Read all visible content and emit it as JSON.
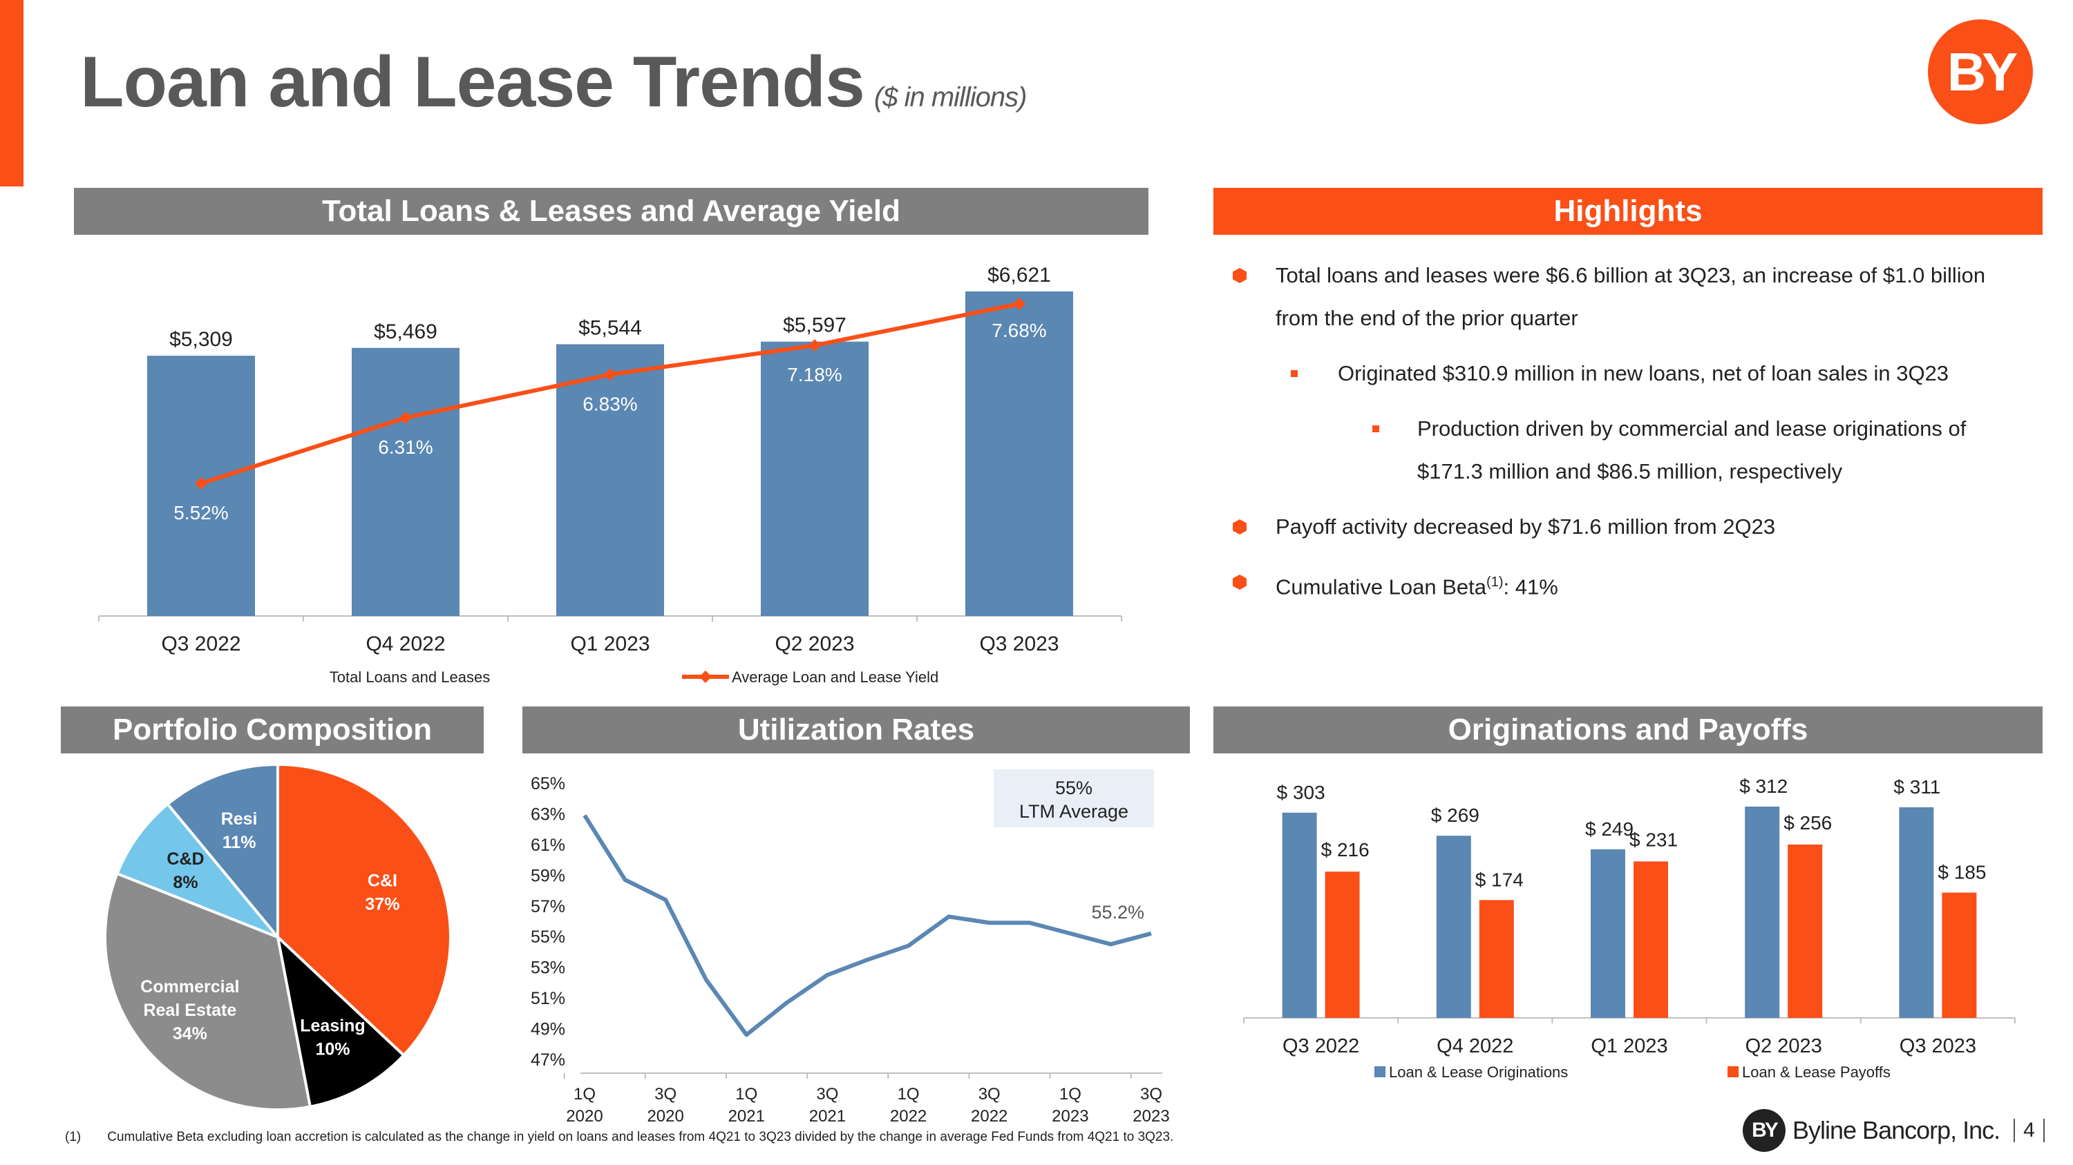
{
  "header": {
    "title": "Loan and Lease Trends",
    "subtitle": "($ in millions)",
    "logo_text": "BY"
  },
  "sections": {
    "total_loans": "Total Loans & Leases and Average Yield",
    "highlights": "Highlights",
    "portfolio": "Portfolio Composition",
    "utilization": "Utilization Rates",
    "originations": "Originations and Payoffs"
  },
  "highlights": [
    {
      "level": 1,
      "lines": [
        "Total loans and leases were $6.6 billion at 3Q23, an increase of $1.0 billion",
        "from the end of the prior quarter"
      ]
    },
    {
      "level": 2,
      "lines": [
        "Originated $310.9 million in new loans, net of loan sales in 3Q23"
      ]
    },
    {
      "level": 3,
      "lines": [
        "Production driven by commercial and lease originations of",
        "$171.3 million and $86.5 million, respectively"
      ]
    },
    {
      "level": 1,
      "lines": [
        "Payoff activity decreased by $71.6 million from 2Q23"
      ]
    },
    {
      "level": 1,
      "lines": [
        "Cumulative Loan Beta",
        ": 41%"
      ],
      "sup": "(1)"
    }
  ],
  "footnote": {
    "marker": "(1)",
    "text": "Cumulative Beta excluding loan accretion is calculated as the change in yield on loans and leases from 4Q21 to 3Q23 divided by the change in average Fed Funds from 4Q21 to 3Q23."
  },
  "footer": {
    "brand_mark": "BY",
    "brand_name": "Byline Bancorp, Inc.",
    "page": "4"
  },
  "colors": {
    "orange": "#FA4F17",
    "blue": "#5B87B3",
    "gray": "#7F7F7F",
    "black": "#000000",
    "light_blue": "#74C6EA",
    "mid_gray": "#8C8C8C"
  },
  "chart_data": [
    {
      "id": "loans_yield",
      "type": "bar",
      "categories": [
        "Q3 2022",
        "Q4 2022",
        "Q1 2023",
        "Q2 2023",
        "Q3 2023"
      ],
      "series": [
        {
          "name": "Total Loans and Leases",
          "type": "bar",
          "values": [
            5309,
            5469,
            5544,
            5597,
            6621
          ],
          "labels": [
            "$5,309",
            "$5,469",
            "$5,544",
            "$5,597",
            "$6,621"
          ]
        },
        {
          "name": "Average Loan and Lease Yield",
          "type": "line",
          "values": [
            5.52,
            6.31,
            6.83,
            7.18,
            7.68
          ],
          "labels": [
            "5.52%",
            "6.31%",
            "6.83%",
            "7.18%",
            "7.68%"
          ]
        }
      ],
      "legend": "bottom"
    },
    {
      "id": "portfolio",
      "type": "pie",
      "slices": [
        {
          "label": "C&I",
          "value": 37,
          "text": "37%"
        },
        {
          "label": "Leasing",
          "value": 10,
          "text": "10%"
        },
        {
          "label": "Commercial Real Estate",
          "lines": [
            "Commercial",
            "Real Estate"
          ],
          "value": 34,
          "text": "34%"
        },
        {
          "label": "C&D",
          "value": 8,
          "text": "8%"
        },
        {
          "label": "Resi",
          "value": 11,
          "text": "11%"
        }
      ]
    },
    {
      "id": "utilization",
      "type": "line",
      "x": [
        "1Q 2020",
        "2Q 2020",
        "3Q 2020",
        "4Q 2020",
        "1Q 2021",
        "2Q 2021",
        "3Q 2021",
        "4Q 2021",
        "1Q 2022",
        "2Q 2022",
        "3Q 2022",
        "4Q 2022",
        "1Q 2023",
        "2Q 2023",
        "3Q 2023"
      ],
      "tick_labels": [
        [
          "1Q",
          "2020"
        ],
        [
          "3Q",
          "2020"
        ],
        [
          "1Q",
          "2021"
        ],
        [
          "3Q",
          "2021"
        ],
        [
          "1Q",
          "2022"
        ],
        [
          "3Q",
          "2022"
        ],
        [
          "1Q",
          "2023"
        ],
        [
          "3Q",
          "2023"
        ]
      ],
      "values": [
        62.9,
        58.7,
        57.4,
        52.2,
        48.6,
        50.7,
        52.5,
        53.5,
        54.4,
        56.3,
        55.9,
        55.9,
        55.2,
        54.5,
        55.2
      ],
      "yticks": [
        "65%",
        "63%",
        "61%",
        "59%",
        "57%",
        "55%",
        "53%",
        "51%",
        "49%",
        "47%"
      ],
      "ylim": [
        47,
        65
      ],
      "end_label": "55.2%",
      "annotation": [
        "55%",
        "LTM Average"
      ]
    },
    {
      "id": "originations",
      "type": "bar",
      "categories": [
        "Q3 2022",
        "Q4 2022",
        "Q1 2023",
        "Q2 2023",
        "Q3 2023"
      ],
      "series": [
        {
          "name": "Loan & Lease Originations",
          "values": [
            303,
            269,
            249,
            312,
            311
          ],
          "labels": [
            "$ 303",
            "$ 269",
            "$ 249",
            "$ 312",
            "$ 311"
          ]
        },
        {
          "name": "Loan & Lease Payoffs",
          "values": [
            216,
            174,
            231,
            256,
            185
          ],
          "labels": [
            "$ 216",
            "$ 174",
            "$ 231",
            "$ 256",
            "$ 185"
          ]
        }
      ],
      "legend": "bottom"
    }
  ]
}
